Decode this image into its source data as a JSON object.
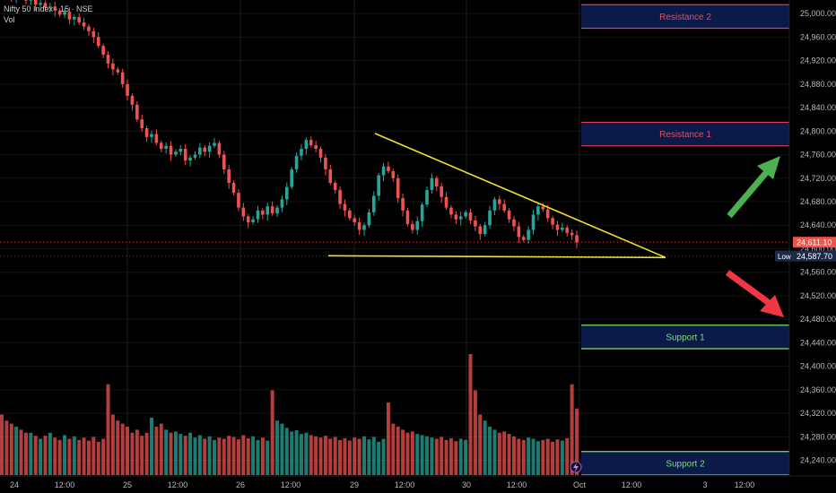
{
  "header": {
    "symbol_line": "Nifty 50 Index · 15 · NSE",
    "indicator": "Vol"
  },
  "colors": {
    "up": "#26a69a",
    "down": "#ef5350",
    "trendline": "#f0e030",
    "resistance_border": "#e04050",
    "support_border": "#7ddf70",
    "zone_fill": "#0c1a4a",
    "arrow_up": "#4caf50",
    "arrow_down": "#f23645"
  },
  "zones": [
    {
      "label": "Resistance 2",
      "type": "resistance",
      "from": 24975,
      "to": 25015
    },
    {
      "label": "Resistance 1",
      "type": "resistance",
      "from": 24775,
      "to": 24815
    },
    {
      "label": "Support 1",
      "type": "support",
      "from": 24430,
      "to": 24470
    },
    {
      "label": "Support 2",
      "type": "support",
      "from": 24215,
      "to": 24255
    }
  ],
  "price_labels": [
    {
      "label": "24,611.10",
      "value": 24611.1,
      "color": "#ef5350"
    },
    {
      "label": "24,587.70",
      "value": 24587.7,
      "color": "#1e2a4a",
      "tag": "Low"
    }
  ],
  "chart_data": {
    "type": "candlestick",
    "title": "",
    "y_ticks": [
      "25,000.00",
      "24,960.00",
      "24,920.00",
      "24,880.00",
      "24,840.00",
      "24,800.00",
      "24,760.00",
      "24,720.00",
      "24,680.00",
      "24,640.00",
      "24,600.00",
      "24,560.00",
      "24,520.00",
      "24,480.00",
      "24,440.00",
      "24,400.00",
      "24,360.00",
      "24,320.00",
      "24,280.00",
      "24,240.00"
    ],
    "y_tick_values": [
      25000,
      24960,
      24920,
      24880,
      24840,
      24800,
      24760,
      24720,
      24680,
      24640,
      24600,
      24560,
      24520,
      24480,
      24440,
      24400,
      24360,
      24320,
      24280,
      24240
    ],
    "ylim": [
      24215,
      25020
    ],
    "x_ticks": [
      "24",
      "12:00",
      "25",
      "12:00",
      "26",
      "12:00",
      "29",
      "12:00",
      "30",
      "12:00",
      "Oct",
      "12:00",
      "3",
      "12:00"
    ],
    "day_separators": [
      "25",
      "26",
      "29",
      "30",
      "Oct"
    ],
    "series": [
      {
        "name": "Candles",
        "close": [
          25040,
          25032,
          25028,
          25035,
          25030,
          25022,
          25025,
          25015,
          25018,
          25010,
          25012,
          25005,
          24998,
          25003,
          24990,
          24994,
          24985,
          24978,
          24970,
          24960,
          24945,
          24930,
          24915,
          24905,
          24900,
          24880,
          24860,
          24845,
          24820,
          24805,
          24790,
          24795,
          24780,
          24770,
          24775,
          24760,
          24765,
          24770,
          24750,
          24755,
          24760,
          24772,
          24765,
          24775,
          24780,
          24760,
          24735,
          24712,
          24695,
          24670,
          24655,
          24645,
          24650,
          24665,
          24658,
          24672,
          24660,
          24670,
          24684,
          24705,
          24735,
          24758,
          24770,
          24785,
          24776,
          24770,
          24755,
          24735,
          24712,
          24700,
          24676,
          24665,
          24652,
          24645,
          24632,
          24640,
          24662,
          24690,
          24725,
          24740,
          24732,
          24720,
          24686,
          24665,
          24642,
          24632,
          24647,
          24675,
          24700,
          24720,
          24706,
          24688,
          24670,
          24658,
          24650,
          24655,
          24662,
          24648,
          24638,
          24625,
          24640,
          24665,
          24684,
          24676,
          24665,
          24650,
          24638,
          24620,
          24615,
          24632,
          24658,
          24672,
          24667,
          24652,
          24641,
          24632,
          24636,
          24627,
          24623,
          24611
        ]
      },
      {
        "name": "Vol",
        "volume": [
          100,
          90,
          85,
          80,
          75,
          70,
          70,
          65,
          60,
          65,
          70,
          62,
          58,
          66,
          60,
          64,
          58,
          62,
          57,
          63,
          55,
          60,
          150,
          100,
          90,
          85,
          80,
          70,
          75,
          65,
          70,
          95,
          80,
          85,
          75,
          70,
          72,
          68,
          65,
          70,
          62,
          66,
          60,
          64,
          58,
          62,
          60,
          65,
          63,
          59,
          66,
          61,
          64,
          58,
          62,
          57,
          140,
          90,
          85,
          78,
          72,
          74,
          68,
          70,
          66,
          64,
          62,
          65,
          60,
          63,
          58,
          61,
          57,
          62,
          60,
          64,
          59,
          63,
          55,
          60,
          120,
          85,
          80,
          75,
          70,
          72,
          68,
          66,
          64,
          62,
          60,
          63,
          58,
          61,
          56,
          60,
          58,
          200,
          140,
          100,
          90,
          80,
          75,
          70,
          72,
          68,
          64,
          60,
          58,
          62,
          60,
          56,
          58,
          60,
          55,
          59,
          57,
          61,
          150,
          110
        ]
      }
    ]
  }
}
